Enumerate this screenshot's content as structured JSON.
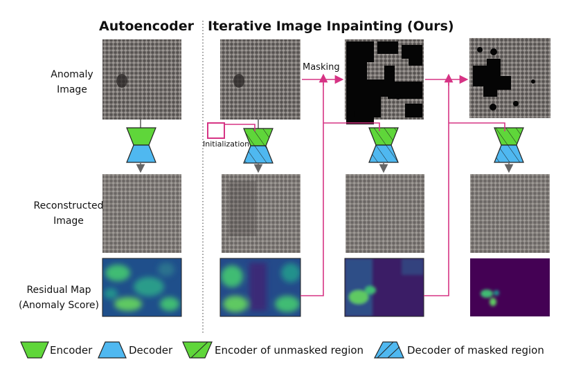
{
  "titles": {
    "autoencoder": "Autoencoder",
    "ours": "Iterative Image Inpainting (Ours)"
  },
  "row_labels": {
    "anomaly_line1": "Anomaly",
    "anomaly_line2": "Image",
    "recon_line1": "Reconstructed",
    "recon_line2": "Image",
    "residual_line1": "Residual Map",
    "residual_line2": "(Anomaly Score)"
  },
  "annotations": {
    "masking": "Masking",
    "initialization": "Initialization"
  },
  "legend": {
    "encoder": "Encoder",
    "decoder": "Decoder",
    "encoder_unmasked": "Encoder of unmasked region",
    "decoder_masked": "Decoder of masked region"
  },
  "colors": {
    "encoder_green": "#5fd63a",
    "decoder_blue": "#4fb8f0",
    "arrow_magenta": "#d63384",
    "arrow_gray": "#666666",
    "heatmap_dark": "#440154",
    "heatmap_mid": "#2c728e",
    "heatmap_high": "#3fbc73",
    "fabric_gray": "#6e6a68"
  }
}
